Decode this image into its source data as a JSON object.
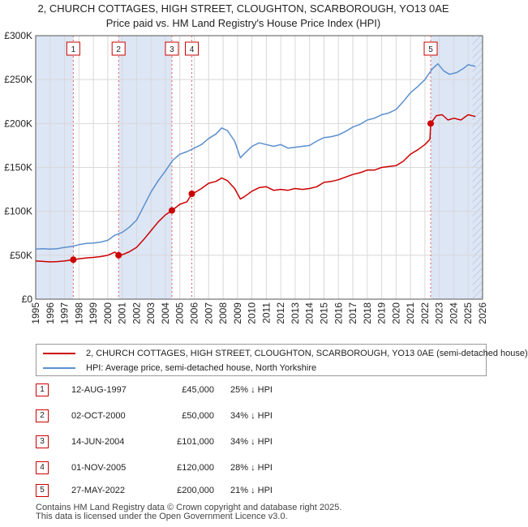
{
  "title_line1": "2, CHURCH COTTAGES, HIGH STREET, CLOUGHTON, SCARBOROUGH, YO13 0AE",
  "title_line2": "Price paid vs. HM Land Registry's House Price Index (HPI)",
  "legend": {
    "property": "2, CHURCH COTTAGES, HIGH STREET, CLOUGHTON, SCARBOROUGH, YO13 0AE (semi-detached house)",
    "hpi": "HPI: Average price, semi-detached house, North Yorkshire"
  },
  "colors": {
    "property": "#cc0000",
    "hpi": "#5b8fcf",
    "shade": "#dde6f5",
    "grid": "#d8d8d8"
  },
  "sales": [
    {
      "num": "1",
      "date": "12-AUG-1997",
      "price": "£45,000",
      "hpi_diff": "25% ↓ HPI"
    },
    {
      "num": "2",
      "date": "02-OCT-2000",
      "price": "£50,000",
      "hpi_diff": "34% ↓ HPI"
    },
    {
      "num": "3",
      "date": "14-JUN-2004",
      "price": "£101,000",
      "hpi_diff": "34% ↓ HPI"
    },
    {
      "num": "4",
      "date": "01-NOV-2005",
      "price": "£120,000",
      "hpi_diff": "28% ↓ HPI"
    },
    {
      "num": "5",
      "date": "27-MAY-2022",
      "price": "£200,000",
      "hpi_diff": "21% ↓ HPI"
    }
  ],
  "footer_line1": "Contains HM Land Registry data © Crown copyright and database right 2025.",
  "footer_line2": "This data is licensed under the Open Government Licence v3.0.",
  "chart_data": {
    "type": "line",
    "title": "Price paid vs. HM Land Registry's House Price Index (HPI)",
    "xlabel": "",
    "ylabel": "",
    "xlim": [
      1995,
      2026
    ],
    "ylim": [
      0,
      300000
    ],
    "x_ticks": [
      1995,
      1996,
      1997,
      1998,
      1999,
      2000,
      2001,
      2002,
      2003,
      2004,
      2005,
      2006,
      2007,
      2008,
      2009,
      2010,
      2011,
      2012,
      2013,
      2014,
      2015,
      2016,
      2017,
      2018,
      2019,
      2020,
      2021,
      2022,
      2023,
      2024,
      2025,
      2026
    ],
    "y_ticks": [
      0,
      50000,
      100000,
      150000,
      200000,
      250000,
      300000
    ],
    "y_tick_labels": [
      "£0",
      "£50K",
      "£100K",
      "£150K",
      "£200K",
      "£250K",
      "£300K"
    ],
    "shaded_ranges": [
      [
        1995,
        1997.61
      ],
      [
        2000.75,
        2004.45
      ],
      [
        2022.4,
        2026
      ]
    ],
    "hatch_from": 2025.3,
    "series": [
      {
        "name": "2, CHURCH COTTAGES, HIGH STREET, CLOUGHTON, SCARBOROUGH, YO13 0AE (semi-detached house)",
        "color": "#cc0000",
        "points": [
          [
            1995,
            43500
          ],
          [
            1995.5,
            43000
          ],
          [
            1996,
            42500
          ],
          [
            1996.5,
            42800
          ],
          [
            1997,
            43500
          ],
          [
            1997.61,
            45000
          ],
          [
            1998,
            46000
          ],
          [
            1998.5,
            47000
          ],
          [
            1999,
            47500
          ],
          [
            1999.5,
            48500
          ],
          [
            2000,
            50000
          ],
          [
            2000.5,
            53500
          ],
          [
            2000.75,
            50000
          ],
          [
            2001,
            50500
          ],
          [
            2001.5,
            54000
          ],
          [
            2002,
            59000
          ],
          [
            2002.5,
            68000
          ],
          [
            2003,
            78000
          ],
          [
            2003.5,
            88000
          ],
          [
            2004,
            96000
          ],
          [
            2004.45,
            101000
          ],
          [
            2005,
            108000
          ],
          [
            2005.5,
            111000
          ],
          [
            2005.83,
            120000
          ],
          [
            2006,
            121000
          ],
          [
            2006.5,
            126000
          ],
          [
            2007,
            132000
          ],
          [
            2007.5,
            134000
          ],
          [
            2007.9,
            138000
          ],
          [
            2008.3,
            135000
          ],
          [
            2008.8,
            126000
          ],
          [
            2009.2,
            114000
          ],
          [
            2009.5,
            117000
          ],
          [
            2010,
            123000
          ],
          [
            2010.5,
            127000
          ],
          [
            2011,
            128000
          ],
          [
            2011.5,
            124000
          ],
          [
            2012,
            125000
          ],
          [
            2012.5,
            124000
          ],
          [
            2013,
            126000
          ],
          [
            2013.5,
            125000
          ],
          [
            2014,
            126000
          ],
          [
            2014.5,
            128000
          ],
          [
            2015,
            133000
          ],
          [
            2015.5,
            134000
          ],
          [
            2016,
            136000
          ],
          [
            2016.5,
            139000
          ],
          [
            2017,
            142000
          ],
          [
            2017.5,
            144000
          ],
          [
            2018,
            147000
          ],
          [
            2018.5,
            147000
          ],
          [
            2019,
            150000
          ],
          [
            2019.5,
            151000
          ],
          [
            2020,
            152000
          ],
          [
            2020.5,
            157000
          ],
          [
            2021,
            165000
          ],
          [
            2021.5,
            170000
          ],
          [
            2022,
            176000
          ],
          [
            2022.35,
            182000
          ],
          [
            2022.4,
            200000
          ],
          [
            2022.8,
            209000
          ],
          [
            2023.2,
            210000
          ],
          [
            2023.6,
            204000
          ],
          [
            2024,
            206000
          ],
          [
            2024.5,
            204000
          ],
          [
            2025,
            210000
          ],
          [
            2025.5,
            208000
          ]
        ]
      },
      {
        "name": "HPI: Average price, semi-detached house, North Yorkshire",
        "color": "#5b8fcf",
        "points": [
          [
            1995,
            57000
          ],
          [
            1995.5,
            57500
          ],
          [
            1996,
            57000
          ],
          [
            1996.5,
            57500
          ],
          [
            1997,
            59000
          ],
          [
            1997.5,
            60000
          ],
          [
            1998,
            62000
          ],
          [
            1998.5,
            63500
          ],
          [
            1999,
            64000
          ],
          [
            1999.5,
            65000
          ],
          [
            2000,
            67000
          ],
          [
            2000.5,
            73000
          ],
          [
            2001,
            76000
          ],
          [
            2001.5,
            82000
          ],
          [
            2002,
            90000
          ],
          [
            2002.5,
            106000
          ],
          [
            2003,
            122000
          ],
          [
            2003.5,
            135000
          ],
          [
            2004,
            146000
          ],
          [
            2004.5,
            158000
          ],
          [
            2005,
            165000
          ],
          [
            2005.5,
            168000
          ],
          [
            2006,
            172000
          ],
          [
            2006.5,
            176000
          ],
          [
            2007,
            183000
          ],
          [
            2007.5,
            188000
          ],
          [
            2007.9,
            195000
          ],
          [
            2008.3,
            192000
          ],
          [
            2008.8,
            180000
          ],
          [
            2009.2,
            161000
          ],
          [
            2009.5,
            166000
          ],
          [
            2010,
            174000
          ],
          [
            2010.5,
            178000
          ],
          [
            2011,
            176000
          ],
          [
            2011.5,
            174000
          ],
          [
            2012,
            176000
          ],
          [
            2012.5,
            172000
          ],
          [
            2013,
            173000
          ],
          [
            2013.5,
            174000
          ],
          [
            2014,
            175000
          ],
          [
            2014.5,
            180000
          ],
          [
            2015,
            184000
          ],
          [
            2015.5,
            185000
          ],
          [
            2016,
            187000
          ],
          [
            2016.5,
            191000
          ],
          [
            2017,
            196000
          ],
          [
            2017.5,
            199000
          ],
          [
            2018,
            204000
          ],
          [
            2018.5,
            206000
          ],
          [
            2019,
            210000
          ],
          [
            2019.5,
            212000
          ],
          [
            2020,
            216000
          ],
          [
            2020.5,
            225000
          ],
          [
            2021,
            235000
          ],
          [
            2021.5,
            242000
          ],
          [
            2022,
            250000
          ],
          [
            2022.5,
            262000
          ],
          [
            2022.9,
            268000
          ],
          [
            2023.3,
            260000
          ],
          [
            2023.7,
            256000
          ],
          [
            2024.2,
            258000
          ],
          [
            2024.7,
            263000
          ],
          [
            2025,
            267000
          ],
          [
            2025.5,
            265000
          ]
        ]
      }
    ],
    "markers": [
      {
        "label": "1",
        "x": 1997.61,
        "y": 45000
      },
      {
        "label": "2",
        "x": 2000.75,
        "y": 50000
      },
      {
        "label": "3",
        "x": 2004.45,
        "y": 101000
      },
      {
        "label": "4",
        "x": 2005.83,
        "y": 120000
      },
      {
        "label": "5",
        "x": 2022.4,
        "y": 200000
      }
    ]
  }
}
